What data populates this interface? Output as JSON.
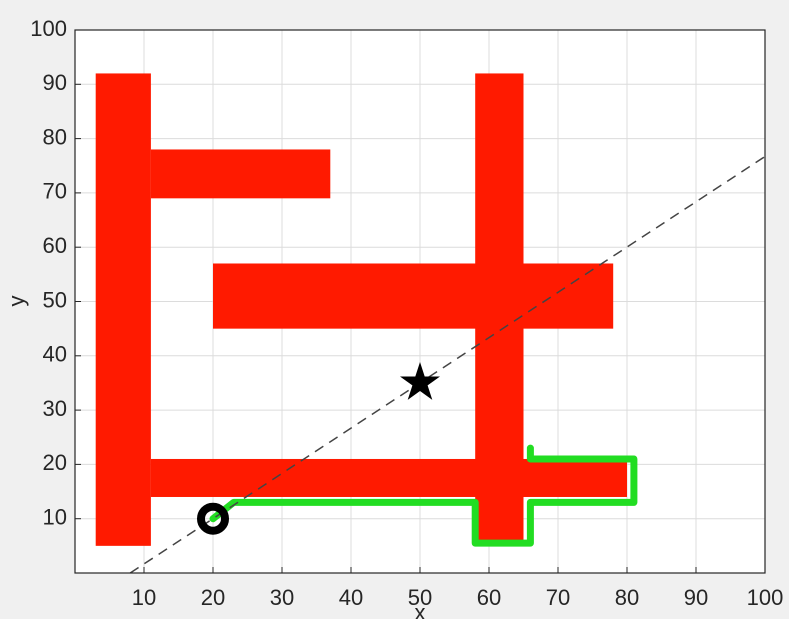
{
  "chart_data": {
    "type": "path-plan",
    "xlabel": "x",
    "ylabel": "y",
    "xlim": [
      0,
      100
    ],
    "ylim": [
      0,
      100
    ],
    "xticks": [
      10,
      20,
      30,
      40,
      50,
      60,
      70,
      80,
      90,
      100
    ],
    "yticks": [
      10,
      20,
      30,
      40,
      50,
      60,
      70,
      80,
      90,
      100
    ],
    "grid": true,
    "obstacle_color": "#ff1a00",
    "obstacles": [
      {
        "x": [
          3,
          11
        ],
        "y": [
          5,
          92
        ]
      },
      {
        "x": [
          11,
          37
        ],
        "y": [
          69,
          78
        ]
      },
      {
        "x": [
          20,
          78
        ],
        "y": [
          45,
          57
        ]
      },
      {
        "x": [
          58,
          65
        ],
        "y": [
          5,
          92
        ]
      },
      {
        "x": [
          11,
          80
        ],
        "y": [
          14,
          21
        ]
      }
    ],
    "reference_line": {
      "color": "#444444",
      "x": [
        8,
        100
      ],
      "y": [
        0,
        76.7
      ]
    },
    "path": {
      "color": "#22dd22",
      "x": [
        20,
        23,
        58,
        58,
        66,
        66,
        81,
        81,
        66,
        66
      ],
      "y": [
        10,
        13,
        13,
        5.5,
        5.5,
        13,
        13,
        21,
        21,
        23
      ]
    },
    "start": {
      "x": 20,
      "y": 10,
      "color": "#000000"
    },
    "goal": {
      "x": 50,
      "y": 35,
      "color": "#000000"
    }
  }
}
